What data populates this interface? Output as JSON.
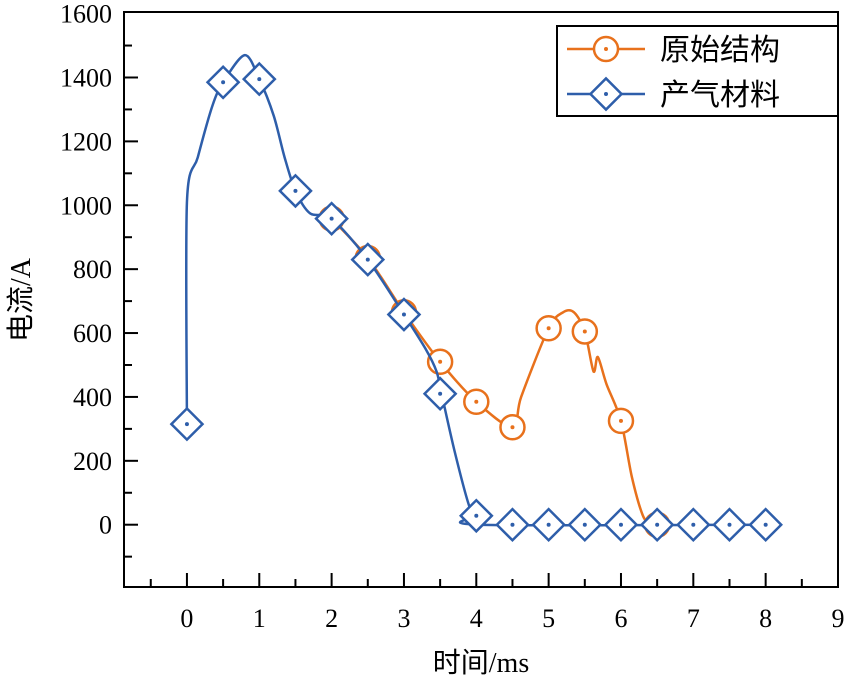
{
  "chart_data": {
    "type": "line",
    "title": "",
    "xlabel": "时间/ms",
    "ylabel": "电流/A",
    "xlim": [
      -0.87,
      9
    ],
    "ylim": [
      -195,
      1605
    ],
    "xticks": [
      0,
      1,
      2,
      3,
      4,
      5,
      6,
      7,
      8,
      9
    ],
    "yticks": [
      0,
      200,
      400,
      600,
      800,
      1000,
      1200,
      1400,
      1600
    ],
    "grid": false,
    "legend_position": "top-right",
    "series": [
      {
        "name": "原始结构",
        "color": "#E8711C",
        "marker": "circle-dot",
        "x": [
          2,
          2.5,
          3,
          3.5,
          4,
          4.5,
          5,
          5.5,
          6,
          6.5
        ],
        "y": [
          958,
          835,
          665,
          510,
          385,
          305,
          615,
          605,
          325,
          0
        ],
        "curve_x": [
          2,
          2.5,
          3,
          3.5,
          4,
          4.5,
          4.62,
          5,
          5.2,
          5.35,
          5.5,
          5.62,
          5.68,
          5.8,
          6,
          6.15,
          6.3,
          6.4,
          6.5
        ],
        "curve_y": [
          958,
          835,
          665,
          510,
          385,
          305,
          400,
          615,
          665,
          665,
          605,
          480,
          525,
          440,
          325,
          150,
          30,
          5,
          0
        ]
      },
      {
        "name": "产气材料",
        "color": "#2E5EAA",
        "marker": "diamond-dot",
        "x": [
          0,
          0.5,
          1,
          1.5,
          2,
          2.5,
          3,
          3.5,
          4,
          4.5,
          5,
          5.5,
          6,
          6.5,
          7,
          7.5,
          8
        ],
        "y": [
          315,
          1385,
          1395,
          1045,
          958,
          830,
          658,
          410,
          28,
          0,
          0,
          0,
          0,
          0,
          0,
          0,
          0
        ],
        "curve_x": [
          0,
          0,
          0.15,
          0.35,
          0.5,
          0.8,
          1,
          1.2,
          1.35,
          1.5,
          1.7,
          2,
          2.5,
          3,
          3.3,
          3.45,
          3.52,
          3.7,
          3.9,
          4,
          4.05,
          8
        ],
        "curve_y": [
          315,
          1010,
          1150,
          1310,
          1385,
          1470,
          1395,
          1280,
          1150,
          1045,
          975,
          958,
          830,
          658,
          550,
          480,
          410,
          230,
          60,
          28,
          0,
          0
        ]
      }
    ]
  }
}
